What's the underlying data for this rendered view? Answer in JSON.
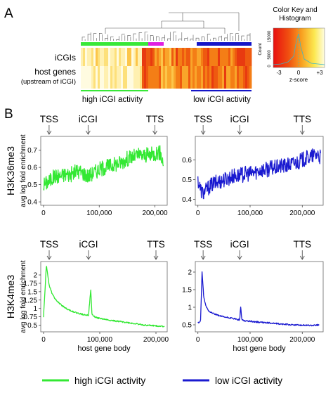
{
  "panel_a": {
    "label": "A",
    "row_labels": [
      "iCGIs",
      "host genes",
      "(upstream of iCGI)"
    ],
    "group_labels": [
      "high iCGI activity",
      "low iCGI activity"
    ],
    "group_colors": {
      "high": "#38e838",
      "low": "#1515c8",
      "mid": "#e020e0"
    },
    "color_key": {
      "title": [
        "Color Key and",
        "Histogram"
      ],
      "xlabel": "z-score",
      "ylabel": "Count",
      "x_ticks": [
        "-3",
        "0",
        "+3"
      ],
      "y_ticks": [
        "0",
        "5000",
        "15000"
      ]
    }
  },
  "panel_b": {
    "label": "B",
    "markers": [
      "TSS",
      "iCGI",
      "TTS"
    ],
    "row_labels": [
      "H3K36me3",
      "H3K4me3"
    ],
    "ylabel": "avg log fold enrichment",
    "xlabel": "host gene body",
    "x_ticks": [
      "0",
      "100,000",
      "200,000"
    ],
    "legend": [
      {
        "label": "high iCGI activity",
        "color": "#33e833"
      },
      {
        "label": "low iCGI activity",
        "color": "#1a1ad0"
      }
    ]
  },
  "chart_data": [
    {
      "type": "line",
      "id": "h3k36-high",
      "xlabel": "",
      "ylabel": "avg log fold enrichment",
      "xlim": [
        -5000,
        222000
      ],
      "ylim": [
        0.38,
        0.78
      ],
      "y_ticks": [
        0.4,
        0.5,
        0.6,
        0.7
      ],
      "series": [
        {
          "name": "high iCGI activity",
          "color": "#33e833",
          "x": [
            0,
            10000,
            20000,
            30000,
            40000,
            50000,
            60000,
            70000,
            80000,
            90000,
            100000,
            110000,
            120000,
            130000,
            140000,
            150000,
            160000,
            170000,
            180000,
            190000,
            200000,
            205000,
            210000,
            215000
          ],
          "y": [
            0.5,
            0.52,
            0.55,
            0.55,
            0.56,
            0.56,
            0.58,
            0.57,
            0.55,
            0.57,
            0.59,
            0.6,
            0.61,
            0.62,
            0.63,
            0.65,
            0.66,
            0.67,
            0.67,
            0.67,
            0.68,
            0.69,
            0.68,
            0.62
          ]
        }
      ],
      "noise": 0.045
    },
    {
      "type": "line",
      "id": "h3k36-low",
      "xlabel": "",
      "ylabel": "",
      "xlim": [
        -5000,
        240000
      ],
      "ylim": [
        0.37,
        0.72
      ],
      "y_ticks": [
        0.4,
        0.5,
        0.6
      ],
      "series": [
        {
          "name": "low iCGI activity",
          "color": "#1a1ad0",
          "x": [
            0,
            5000,
            10000,
            20000,
            30000,
            40000,
            50000,
            60000,
            70000,
            80000,
            90000,
            100000,
            110000,
            120000,
            130000,
            140000,
            150000,
            160000,
            170000,
            180000,
            190000,
            200000,
            210000,
            220000,
            230000,
            235000
          ],
          "y": [
            0.5,
            0.45,
            0.43,
            0.46,
            0.48,
            0.49,
            0.5,
            0.51,
            0.52,
            0.52,
            0.53,
            0.53,
            0.54,
            0.55,
            0.55,
            0.56,
            0.56,
            0.57,
            0.57,
            0.58,
            0.59,
            0.6,
            0.61,
            0.62,
            0.63,
            0.61
          ]
        }
      ],
      "noise": 0.04
    },
    {
      "type": "line",
      "id": "h3k4-high",
      "xlabel": "host gene body",
      "ylabel": "avg log fold enrichment",
      "xlim": [
        -5000,
        220000
      ],
      "ylim": [
        0.3,
        2.4
      ],
      "y_ticks": [
        0.5,
        0.75,
        1.0,
        1.25,
        1.5,
        1.75,
        2.0
      ],
      "series": [
        {
          "name": "high iCGI activity",
          "color": "#33e833",
          "x": [
            0,
            5000,
            10000,
            15000,
            20000,
            30000,
            40000,
            50000,
            60000,
            70000,
            80000,
            84000,
            86000,
            88000,
            92000,
            100000,
            120000,
            140000,
            160000,
            180000,
            200000,
            215000
          ],
          "y": [
            0.75,
            2.3,
            1.7,
            1.45,
            1.3,
            1.12,
            1.0,
            0.92,
            0.86,
            0.82,
            0.8,
            1.55,
            0.85,
            0.78,
            0.74,
            0.7,
            0.64,
            0.6,
            0.55,
            0.5,
            0.48,
            0.46
          ]
        }
      ],
      "noise": 0.02
    },
    {
      "type": "line",
      "id": "h3k4-low",
      "xlabel": "host gene body",
      "ylabel": "",
      "xlim": [
        -5000,
        240000
      ],
      "ylim": [
        0.3,
        2.3
      ],
      "y_ticks": [
        0.5,
        1.0,
        1.5,
        2.0
      ],
      "series": [
        {
          "name": "low iCGI activity",
          "color": "#1a1ad0",
          "x": [
            0,
            5000,
            8000,
            11000,
            15000,
            20000,
            30000,
            40000,
            50000,
            60000,
            70000,
            80000,
            82000,
            84000,
            88000,
            100000,
            120000,
            140000,
            160000,
            180000,
            200000,
            220000,
            232000
          ],
          "y": [
            0.55,
            0.6,
            2.0,
            1.3,
            1.05,
            0.9,
            0.82,
            0.76,
            0.72,
            0.7,
            0.67,
            0.64,
            1.02,
            0.66,
            0.62,
            0.6,
            0.57,
            0.55,
            0.52,
            0.5,
            0.49,
            0.48,
            0.5
          ]
        }
      ],
      "noise": 0.02
    }
  ]
}
